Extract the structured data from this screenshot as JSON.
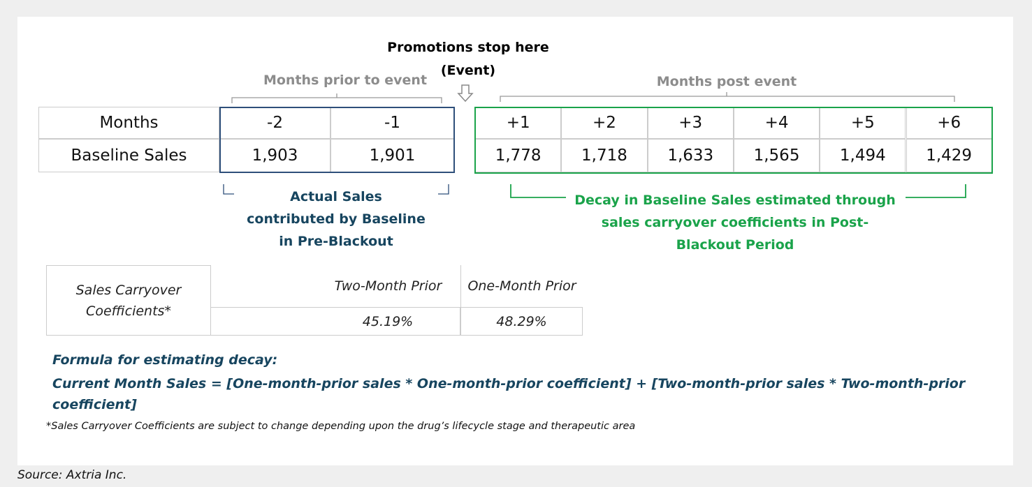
{
  "event": {
    "title": "Promotions stop here",
    "subtitle": "(Event)"
  },
  "prior_label": "Months prior to event",
  "post_label": "Months post event",
  "sales_table": {
    "row_headers": [
      "Months",
      "Baseline Sales"
    ],
    "months": [
      "-2",
      "-1",
      "+1",
      "+2",
      "+3",
      "+4",
      "+5",
      "+6"
    ],
    "sales": [
      "1,903",
      "1,901",
      "1,778",
      "1,718",
      "1,633",
      "1,565",
      "1,494",
      "1,429"
    ]
  },
  "actual_note": [
    "Actual Sales",
    "contributed by Baseline",
    "in Pre-Blackout"
  ],
  "decay_note": [
    "Decay in Baseline Sales estimated through",
    "sales carryover coefficients in Post-",
    "Blackout Period"
  ],
  "coefficient_table": {
    "header": "Sales Carryover Coefficients*",
    "columns": [
      "Two-Month Prior",
      "One-Month Prior"
    ],
    "values": [
      "45.19%",
      "48.29%"
    ]
  },
  "formula": {
    "title": "Formula for estimating decay:",
    "text": "Current Month Sales = [One-month-prior sales * One-month-prior coefficient] + [Two-month-prior sales * Two-month-prior coefficient]"
  },
  "footnote": "*Sales Carryover Coefficients are subject to change depending upon the drug’s lifecycle stage and therapeutic area",
  "source": "Source: Axtria Inc."
}
